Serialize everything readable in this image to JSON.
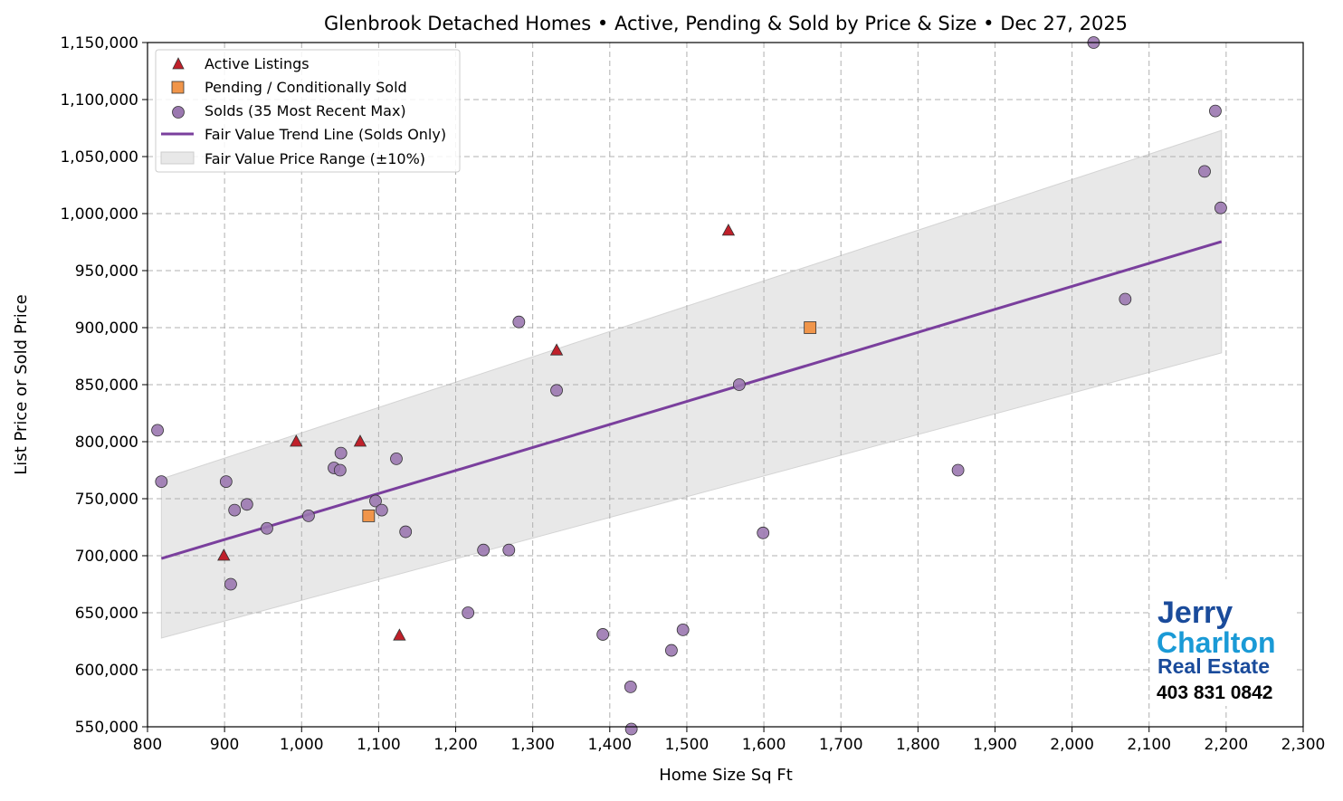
{
  "chart_data": {
    "type": "scatter",
    "title": "Glenbrook Detached Homes • Active, Pending & Sold by Price & Size • Dec 27, 2025",
    "xlabel": "Home Size Sq Ft",
    "ylabel": "List Price or Sold Price",
    "xlim": [
      800,
      2300
    ],
    "ylim": [
      550000,
      1150000
    ],
    "xticks": [
      800,
      900,
      1000,
      1100,
      1200,
      1300,
      1400,
      1500,
      1600,
      1700,
      1800,
      1900,
      2000,
      2100,
      2200,
      2300
    ],
    "xtick_labels": [
      "800",
      "900",
      "1,000",
      "1,100",
      "1,200",
      "1,300",
      "1,400",
      "1,500",
      "1,600",
      "1,700",
      "1,800",
      "1,900",
      "2,000",
      "2,100",
      "2,200",
      "2,300"
    ],
    "yticks": [
      550000,
      600000,
      650000,
      700000,
      750000,
      800000,
      850000,
      900000,
      950000,
      1000000,
      1050000,
      1100000,
      1150000
    ],
    "ytick_labels": [
      "550,000",
      "600,000",
      "650,000",
      "700,000",
      "750,000",
      "800,000",
      "850,000",
      "900,000",
      "950,000",
      "1,000,000",
      "1,050,000",
      "1,100,000",
      "1,150,000"
    ],
    "grid": true,
    "legend_position": "top-left",
    "series": [
      {
        "name": "Active Listings",
        "marker": "triangle",
        "color": "#c0202a",
        "points": [
          [
            993,
            800000
          ],
          [
            1076,
            800000
          ],
          [
            899,
            700000
          ],
          [
            1127,
            630000
          ],
          [
            1331,
            880000
          ],
          [
            1554,
            985000
          ]
        ]
      },
      {
        "name": "Pending / Conditionally Sold",
        "marker": "square",
        "color": "#f0954a",
        "points": [
          [
            1087,
            735000
          ],
          [
            1660,
            900000
          ]
        ]
      },
      {
        "name": "Solds (35 Most Recent Max)",
        "marker": "circle",
        "color": "#9b78b0",
        "points": [
          [
            813,
            810000
          ],
          [
            818,
            765000
          ],
          [
            902,
            765000
          ],
          [
            913,
            740000
          ],
          [
            929,
            745000
          ],
          [
            955,
            724000
          ],
          [
            908,
            675000
          ],
          [
            1009,
            735000
          ],
          [
            1042,
            777000
          ],
          [
            1051,
            790000
          ],
          [
            1050,
            775000
          ],
          [
            1096,
            748000
          ],
          [
            1104,
            740000
          ],
          [
            1123,
            785000
          ],
          [
            1135,
            721000
          ],
          [
            1216,
            650000
          ],
          [
            1236,
            705000
          ],
          [
            1269,
            705000
          ],
          [
            1282,
            905000
          ],
          [
            1331,
            845000
          ],
          [
            1391,
            631000
          ],
          [
            1427,
            585000
          ],
          [
            1428,
            548000
          ],
          [
            1480,
            617000
          ],
          [
            1495,
            635000
          ],
          [
            1568,
            850000
          ],
          [
            1599,
            720000
          ],
          [
            1852,
            775000
          ],
          [
            2028,
            1150000
          ],
          [
            2069,
            925000
          ],
          [
            2172,
            1037000
          ],
          [
            2186,
            1090000
          ],
          [
            2193,
            1005000
          ]
        ]
      }
    ],
    "trend_line": {
      "name": "Fair Value Trend Line (Solds Only)",
      "color": "#7a3f9d",
      "x": [
        818,
        2194
      ],
      "y": [
        697600,
        975400
      ]
    },
    "range_band": {
      "name": "Fair Value Price Range (±10%)",
      "color": "#e8e8e8",
      "pct": 10
    }
  },
  "logo": {
    "line1": "Jerry",
    "line2": "Charlton",
    "line3": "Real Estate",
    "phone": "403 831 0842"
  }
}
